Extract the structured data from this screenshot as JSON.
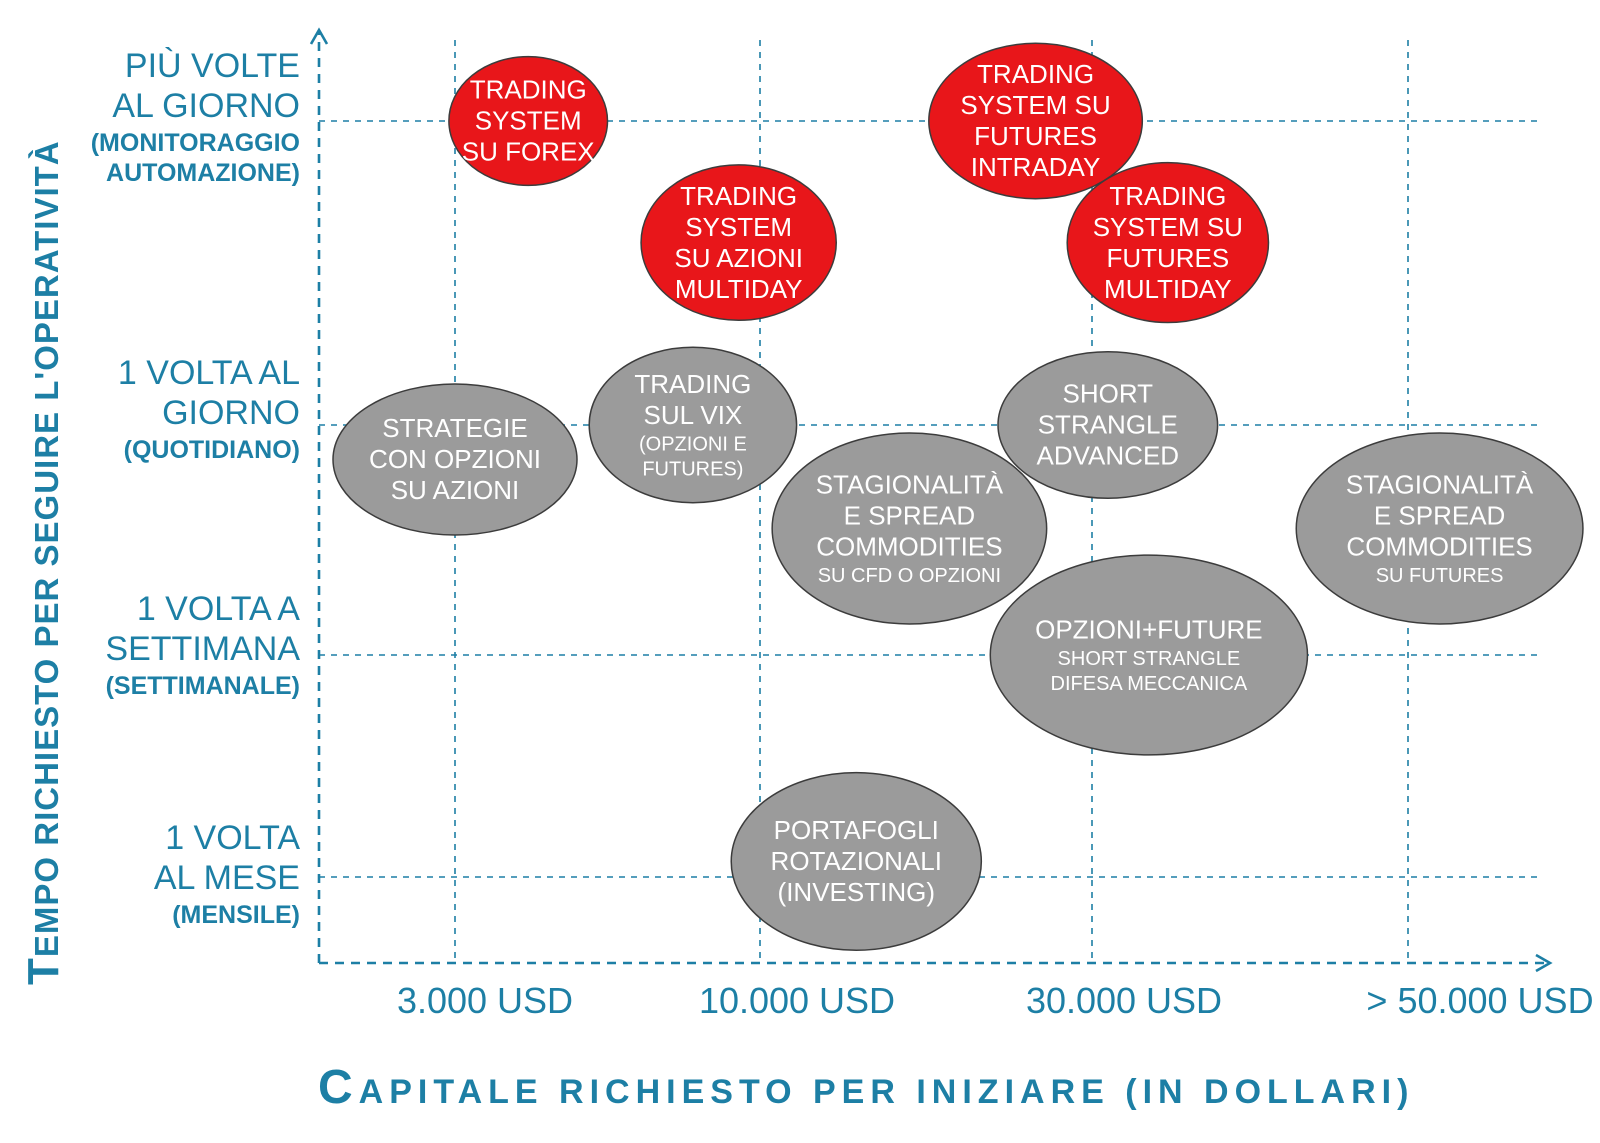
{
  "chart_data": {
    "type": "scatter",
    "ylabel": "Tempo richiesto per seguire l'operatività",
    "xlabel": "Capitale richiesto per iniziare (in dollari)",
    "x_categories": [
      "3.000 USD",
      "10.000 USD",
      "30.000 USD",
      "> 50.000 USD"
    ],
    "y_categories": [
      {
        "lines": [
          "1 VOLTA",
          "AL MESE"
        ],
        "sub": "(MENSILE)"
      },
      {
        "lines": [
          "1 VOLTA A",
          "SETTIMANA"
        ],
        "sub": "(SETTIMANALE)"
      },
      {
        "lines": [
          "1 VOLTA AL",
          "GIORNO"
        ],
        "sub": "(QUOTIDIANO)"
      },
      {
        "lines": [
          "PIÙ VOLTE",
          "AL GIORNO"
        ],
        "sub": "(MONITORAGGIO AUTOMAZIONE)",
        "sub_lines": [
          "(MONITORAGGIO",
          "AUTOMAZIONE)"
        ]
      }
    ],
    "colors": {
      "axis": "#1d7fa5",
      "red": "#e8161a",
      "grey": "#9b9b9b"
    },
    "bubbles": [
      {
        "name": "Trading system su Forex",
        "color": "red",
        "x": 0.24,
        "y": 3.0,
        "rx": 0.26,
        "ry": 0.29,
        "lines": [
          {
            "t": "TRADING",
            "s": "big"
          },
          {
            "t": "SYSTEM",
            "s": "big"
          },
          {
            "t": "SU FOREX",
            "s": "big"
          }
        ]
      },
      {
        "name": "Trading system su azioni multiday",
        "color": "red",
        "x": 0.93,
        "y": 2.6,
        "rx": 0.32,
        "ry": 0.35,
        "lines": [
          {
            "t": "TRADING",
            "s": "big"
          },
          {
            "t": "SYSTEM",
            "s": "big"
          },
          {
            "t": "SU AZIONI",
            "s": "big"
          },
          {
            "t": "MULTIDAY",
            "s": "big"
          }
        ]
      },
      {
        "name": "Trading system su futures intraday",
        "color": "red",
        "x": 1.83,
        "y": 3.0,
        "rx": 0.35,
        "ry": 0.35,
        "lines": [
          {
            "t": "TRADING",
            "s": "big"
          },
          {
            "t": "SYSTEM SU",
            "s": "big"
          },
          {
            "t": "FUTURES",
            "s": "big"
          },
          {
            "t": "INTRADAY",
            "s": "big"
          }
        ]
      },
      {
        "name": "Trading system su futures multiday",
        "color": "red",
        "x": 2.24,
        "y": 2.6,
        "rx": 0.33,
        "ry": 0.36,
        "lines": [
          {
            "t": "TRADING",
            "s": "big"
          },
          {
            "t": "SYSTEM SU",
            "s": "big"
          },
          {
            "t": "FUTURES",
            "s": "big"
          },
          {
            "t": "MULTIDAY",
            "s": "big"
          }
        ]
      },
      {
        "name": "Strategie con opzioni su azioni",
        "color": "grey",
        "x": 0.0,
        "y": 1.85,
        "rx": 0.4,
        "ry": 0.34,
        "lines": [
          {
            "t": "STRATEGIE",
            "s": "big"
          },
          {
            "t": "CON OPZIONI",
            "s": "big"
          },
          {
            "t": "SU AZIONI",
            "s": "big"
          }
        ]
      },
      {
        "name": "Trading sul VIX",
        "color": "grey",
        "x": 0.78,
        "y": 2.0,
        "rx": 0.34,
        "ry": 0.35,
        "lines": [
          {
            "t": "TRADING",
            "s": "big"
          },
          {
            "t": "SUL VIX",
            "s": "big"
          },
          {
            "t": "(OPZIONI E",
            "s": "small"
          },
          {
            "t": "FUTURES)",
            "s": "small"
          }
        ]
      },
      {
        "name": "Short strangle advanced",
        "color": "grey",
        "x": 2.05,
        "y": 2.0,
        "rx": 0.36,
        "ry": 0.33,
        "lines": [
          {
            "t": "SHORT",
            "s": "big"
          },
          {
            "t": "STRANGLE",
            "s": "big"
          },
          {
            "t": "ADVANCED",
            "s": "big"
          }
        ]
      },
      {
        "name": "Stagionalità e spread commodities su CFD o opzioni",
        "color": "grey",
        "x": 1.45,
        "y": 1.55,
        "rx": 0.45,
        "ry": 0.43,
        "lines": [
          {
            "t": "STAGIONALITÀ",
            "s": "big"
          },
          {
            "t": "E SPREAD",
            "s": "big"
          },
          {
            "t": "COMMODITIES",
            "s": "big"
          },
          {
            "t": "SU CFD O OPZIONI",
            "s": "small"
          }
        ]
      },
      {
        "name": "Stagionalità e spread commodities su futures",
        "color": "grey",
        "x": 3.1,
        "y": 1.55,
        "rx": 0.47,
        "ry": 0.43,
        "lines": [
          {
            "t": "STAGIONALITÀ",
            "s": "big"
          },
          {
            "t": "E SPREAD",
            "s": "big"
          },
          {
            "t": "COMMODITIES",
            "s": "big"
          },
          {
            "t": "SU FUTURES",
            "s": "small"
          }
        ]
      },
      {
        "name": "Opzioni+Future short strangle difesa meccanica",
        "color": "grey",
        "x": 2.18,
        "y": 1.0,
        "rx": 0.52,
        "ry": 0.45,
        "lines": [
          {
            "t": "OPZIONI+FUTURE",
            "s": "big"
          },
          {
            "t": "SHORT STRANGLE",
            "s": "small"
          },
          {
            "t": "DIFESA MECCANICA",
            "s": "small"
          }
        ]
      },
      {
        "name": "Portafogli rotazionali (investing)",
        "color": "grey",
        "x": 1.29,
        "y": 0.07,
        "rx": 0.41,
        "ry": 0.4,
        "lines": [
          {
            "t": "PORTAFOGLI",
            "s": "big"
          },
          {
            "t": "ROTAZIONALI",
            "s": "big"
          },
          {
            "t": "(INVESTING)",
            "s": "big"
          }
        ]
      }
    ]
  }
}
